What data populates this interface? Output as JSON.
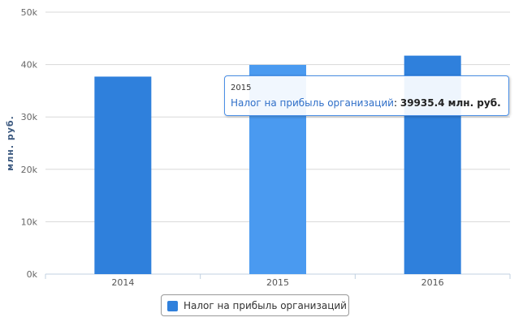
{
  "chart_data": {
    "type": "bar",
    "categories": [
      "2014",
      "2015",
      "2016"
    ],
    "series": [
      {
        "name": "Налог на прибыль организаций",
        "values": [
          37700,
          39935.4,
          41700
        ]
      }
    ],
    "ylabel": "млн. руб.",
    "ylim": [
      0,
      50000
    ],
    "yticks": [
      "0k",
      "10k",
      "20k",
      "30k",
      "40k",
      "50k"
    ],
    "grid": true,
    "legend_position": "bottom"
  },
  "colors": {
    "bar": "#2f80dc",
    "bar_highlight": "#4a9af0",
    "grid": "#d8d8d8"
  },
  "tooltip": {
    "category": "2015",
    "series_label": "Налог на прибыль организаций",
    "value_text": "39935.4 млн. руб."
  },
  "legend": {
    "label": "Налог на прибыль организаций"
  }
}
